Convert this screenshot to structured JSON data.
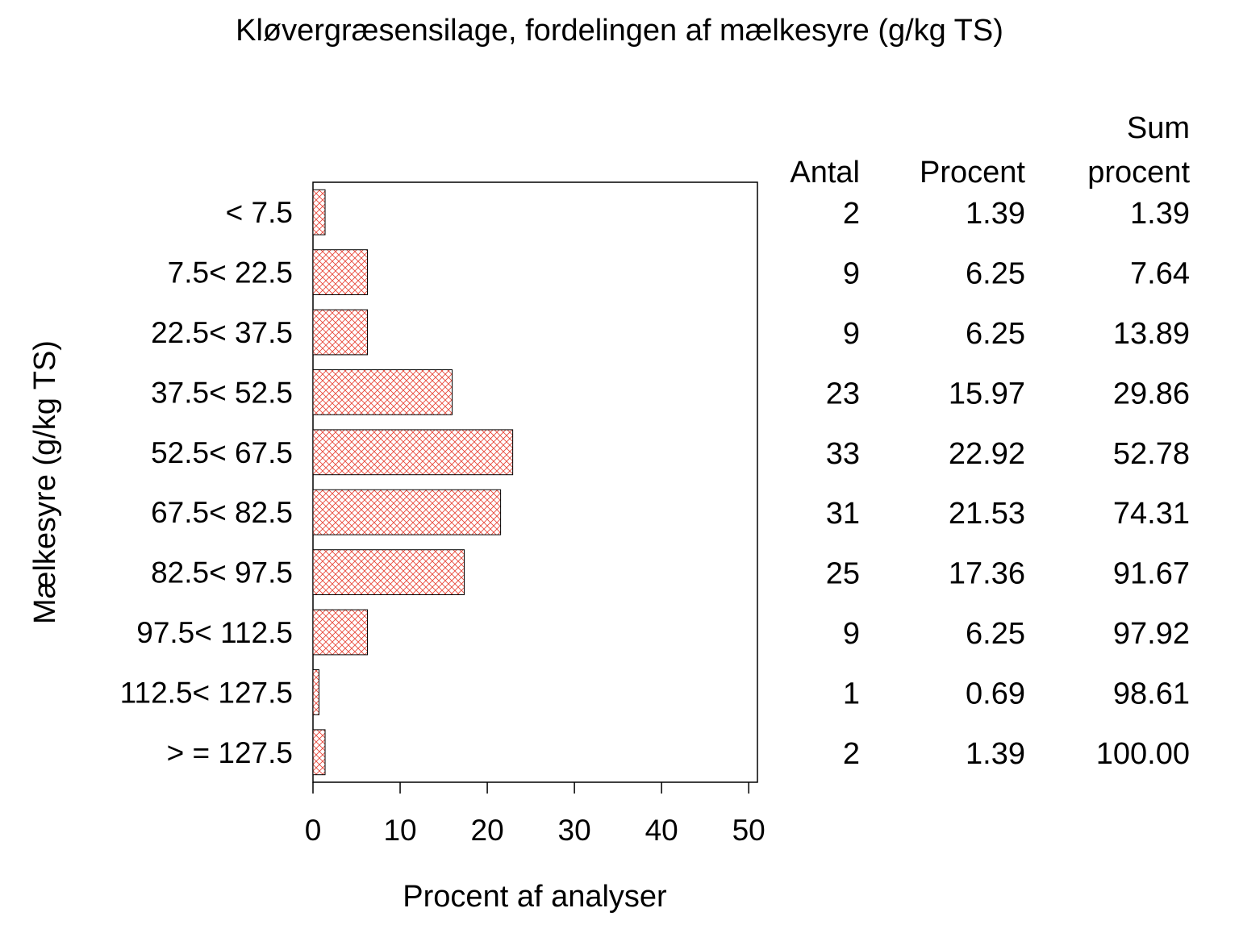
{
  "chart_data": {
    "type": "bar",
    "orientation": "horizontal",
    "title": "Kløvergræsensilage, fordelingen af mælkesyre (g/kg TS)",
    "xlabel": "Procent af analyser",
    "ylabel": "Mælkesyre (g/kg TS)",
    "xlim": [
      0,
      51
    ],
    "xticks": [
      "0",
      "10",
      "20",
      "30",
      "40",
      "50"
    ],
    "xtick_values": [
      0,
      10,
      20,
      30,
      40,
      50
    ],
    "categories": [
      "< 7.5",
      "7.5< 22.5",
      "22.5< 37.5",
      "37.5< 52.5",
      "52.5< 67.5",
      "67.5< 82.5",
      "82.5< 97.5",
      "97.5< 112.5",
      "112.5< 127.5",
      "> = 127.5"
    ],
    "values": [
      1.39,
      6.25,
      6.25,
      15.97,
      22.92,
      21.53,
      17.36,
      6.25,
      0.69,
      1.39
    ],
    "bar_fill": "crosshatch",
    "bar_color": "#e8473a",
    "grid": false,
    "table": {
      "headers": {
        "count": "Antal",
        "percent": "Procent",
        "cumulative_line1": "Sum",
        "cumulative_line2": "procent"
      },
      "rows": [
        {
          "count": "2",
          "percent": "1.39",
          "cumulative": "1.39"
        },
        {
          "count": "9",
          "percent": "6.25",
          "cumulative": "7.64"
        },
        {
          "count": "9",
          "percent": "6.25",
          "cumulative": "13.89"
        },
        {
          "count": "23",
          "percent": "15.97",
          "cumulative": "29.86"
        },
        {
          "count": "33",
          "percent": "22.92",
          "cumulative": "52.78"
        },
        {
          "count": "31",
          "percent": "21.53",
          "cumulative": "74.31"
        },
        {
          "count": "25",
          "percent": "17.36",
          "cumulative": "91.67"
        },
        {
          "count": "9",
          "percent": "6.25",
          "cumulative": "97.92"
        },
        {
          "count": "1",
          "percent": "0.69",
          "cumulative": "98.61"
        },
        {
          "count": "2",
          "percent": "1.39",
          "cumulative": "100.00"
        }
      ]
    }
  }
}
